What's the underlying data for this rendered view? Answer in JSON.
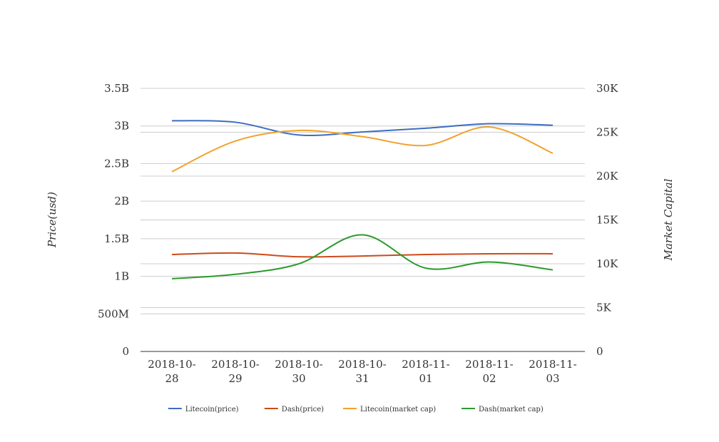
{
  "chart_data": {
    "type": "line",
    "categories": [
      "2018-10-28",
      "2018-10-29",
      "2018-10-30",
      "2018-10-31",
      "2018-11-01",
      "2018-11-02",
      "2018-11-03"
    ],
    "x_tick_labels": [
      [
        "2018-10-",
        "28"
      ],
      [
        "2018-10-",
        "29"
      ],
      [
        "2018-10-",
        "30"
      ],
      [
        "2018-10-",
        "31"
      ],
      [
        "2018-11-",
        "01"
      ],
      [
        "2018-11-",
        "02"
      ],
      [
        "2018-11-",
        "03"
      ]
    ],
    "left_axis": {
      "title": "Price(usd)",
      "range": [
        0,
        3500000000
      ],
      "ticks": [
        0,
        500000000,
        1000000000,
        1500000000,
        2000000000,
        2500000000,
        3000000000,
        3500000000
      ],
      "tick_labels": [
        "0",
        "500M",
        "1B",
        "1.5B",
        "2B",
        "2.5B",
        "3B",
        "3.5B"
      ]
    },
    "right_axis": {
      "title": "Market Capital",
      "range": [
        0,
        30000
      ],
      "ticks": [
        0,
        5000,
        10000,
        15000,
        20000,
        25000,
        30000
      ],
      "tick_labels": [
        "0",
        "5K",
        "10K",
        "15K",
        "20K",
        "25K",
        "30K"
      ]
    },
    "grid": true,
    "legend_position": "bottom",
    "series": [
      {
        "name": "Litecoin(price)",
        "axis": "left",
        "color": "#3e6dbf",
        "values": [
          3070000000,
          3050000000,
          2880000000,
          2920000000,
          2970000000,
          3030000000,
          3010000000
        ]
      },
      {
        "name": "Dash(price)",
        "axis": "left",
        "color": "#cc4a1a",
        "values": [
          1290000000,
          1310000000,
          1260000000,
          1270000000,
          1290000000,
          1300000000,
          1300000000
        ]
      },
      {
        "name": "Litecoin(market cap)",
        "axis": "right",
        "color": "#f0a22e",
        "values": [
          20500,
          24000,
          25200,
          24500,
          23500,
          25600,
          22600
        ]
      },
      {
        "name": "Dash(market cap)",
        "axis": "right",
        "color": "#2c9a2c",
        "values": [
          8300,
          8800,
          10000,
          13300,
          9500,
          10200,
          9300
        ]
      }
    ]
  }
}
